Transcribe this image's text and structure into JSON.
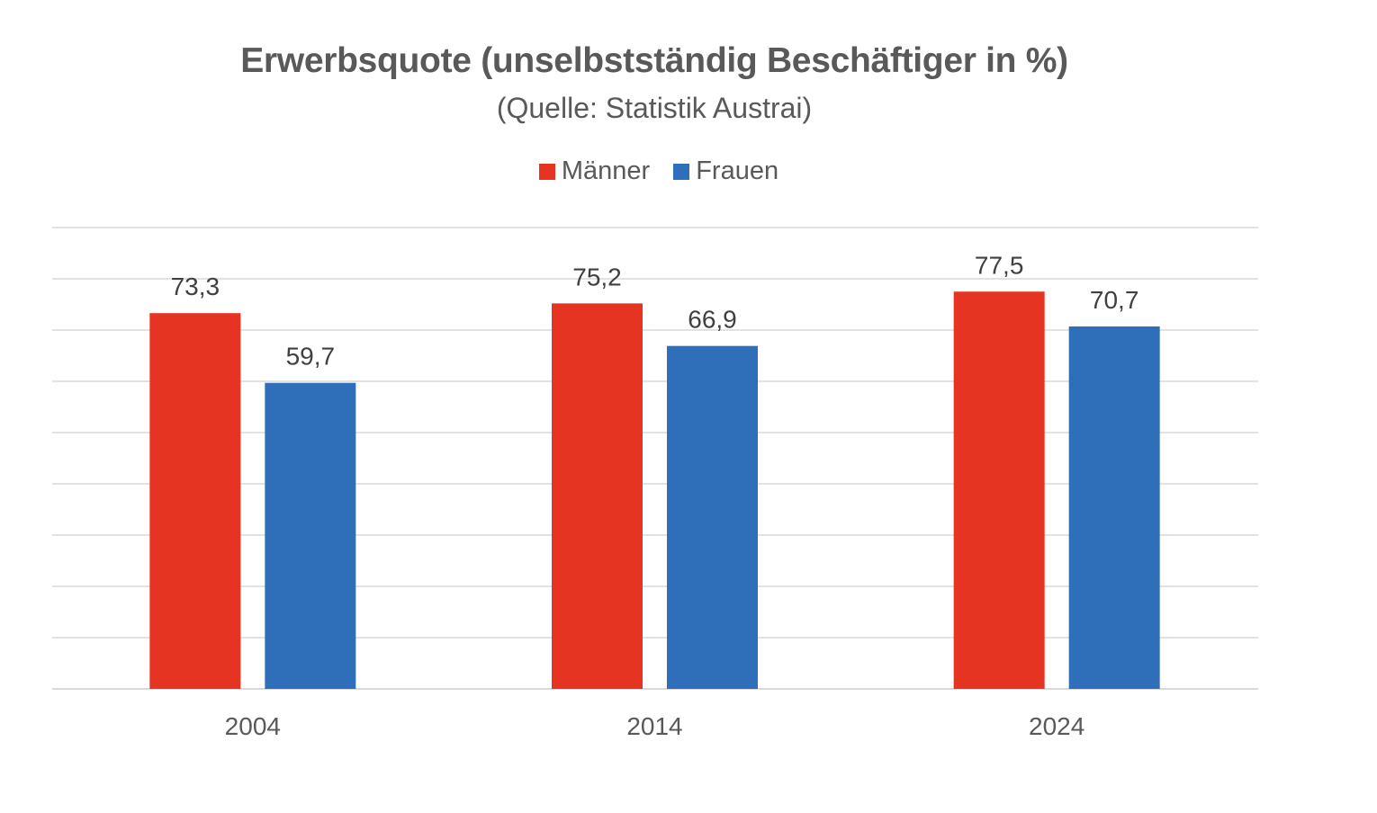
{
  "chart_data": {
    "type": "bar",
    "title": "Erwerbsquote (unselbstständig Beschäftiger in %)",
    "subtitle": "(Quelle: Statistik Austrai)",
    "categories": [
      "2004",
      "2014",
      "2024"
    ],
    "series": [
      {
        "name": "Männer",
        "color": "#e53421",
        "values": [
          73.3,
          75.2,
          77.5
        ],
        "labels": [
          "73,3",
          "75,2",
          "77,5"
        ]
      },
      {
        "name": "Frauen",
        "color": "#2f6fb9",
        "values": [
          59.7,
          66.9,
          70.7
        ],
        "labels": [
          "59,7",
          "66,9",
          "70,7"
        ]
      }
    ],
    "ylim": [
      0,
      90
    ],
    "grid": true,
    "y_axis_labels_shown": false,
    "legend_position": "top"
  },
  "colors": {
    "grid": "#d9d9d9",
    "text": "#595959",
    "label_text": "#404040"
  }
}
